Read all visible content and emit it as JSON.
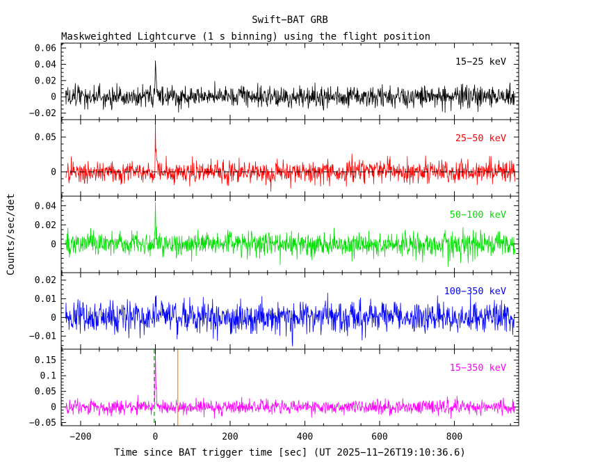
{
  "title": "Swift−BAT GRB",
  "subtitle": "Maskweighted Lightcurve (1 s binning) using the flight position",
  "xlabel": "Time since BAT trigger time [sec] (UT 2025−11−26T19:10:36.6)",
  "ylabel": "Counts/sec/det",
  "chart_data": {
    "type": "line",
    "title": "Swift−BAT GRB",
    "subtitle": "Maskweighted Lightcurve (1 s binning) using the flight position",
    "xlabel": "Time since BAT trigger time [sec] (UT 2025−11−26T19:10:36.6)",
    "ylabel": "Counts/sec/det",
    "legend_position": "none",
    "grid": false,
    "x_axis": {
      "min": -252,
      "max": 972,
      "data_start": -240,
      "data_end": 962,
      "bin_sec": 1,
      "major_ticks": [
        -200,
        0,
        200,
        400,
        600,
        800
      ],
      "tick_labels": [
        "−200",
        "0",
        "200",
        "400",
        "600",
        "800"
      ],
      "minor_step": 50
    },
    "noise_seed": 20251126,
    "panels": [
      {
        "name": "15-25-keV",
        "label": "15−25 keV",
        "color": "#000000",
        "ylim": [
          -0.028,
          0.066
        ],
        "ytick_values": [
          0.06,
          0.04,
          0.02,
          0,
          -0.02
        ],
        "ytick_labels": [
          "0.06",
          "0.04",
          "0.02",
          "0",
          "−0.02"
        ],
        "minor_step": 0.005,
        "noise_sigma": 0.0063,
        "peak": {
          "t0": 0,
          "amp": 0.053,
          "rise": 0.9,
          "decay": 2.2
        }
      },
      {
        "name": "25-50-keV",
        "label": "25−50 keV",
        "color": "#ff0000",
        "ylim": [
          -0.035,
          0.075
        ],
        "ytick_values": [
          0.05,
          0
        ],
        "ytick_labels": [
          "0.05",
          "0"
        ],
        "minor_step": 0.01,
        "noise_sigma": 0.0078,
        "peak": {
          "t0": 0,
          "amp": 0.062,
          "rise": 0.9,
          "decay": 3.5
        }
      },
      {
        "name": "50-100-keV",
        "label": "50−100 keV",
        "color": "#00dd00",
        "ylim": [
          -0.03,
          0.05
        ],
        "ytick_values": [
          0.04,
          0.02,
          0
        ],
        "ytick_labels": [
          "0.04",
          "0.02",
          "0"
        ],
        "minor_step": 0.005,
        "noise_sigma": 0.0063,
        "peak": {
          "t0": 0,
          "amp": 0.043,
          "rise": 0.8,
          "decay": 1.8
        }
      },
      {
        "name": "100-350-keV",
        "label": "100−350 keV",
        "color": "#0000ff",
        "ylim": [
          -0.017,
          0.024
        ],
        "ytick_values": [
          0.02,
          0.01,
          0,
          -0.01
        ],
        "ytick_labels": [
          "0.02",
          "0.01",
          "0",
          "−0.01"
        ],
        "minor_step": 0.0025,
        "noise_sigma": 0.0042,
        "peak": {
          "t0": 0,
          "amp": 0.014,
          "rise": 0.8,
          "decay": 1.5
        }
      },
      {
        "name": "15-350-keV",
        "label": "15−350 keV",
        "color": "#ff00ff",
        "ylim": [
          -0.06,
          0.185
        ],
        "ytick_values": [
          0.15,
          0.1,
          0.05,
          0,
          -0.05
        ],
        "ytick_labels": [
          "0.15",
          "0.1",
          "0.05",
          "0",
          "−0.05"
        ],
        "minor_step": 0.01,
        "noise_sigma": 0.0115,
        "peak": {
          "t0": 0,
          "amp": 0.165,
          "rise": 0.9,
          "decay": 2.2
        }
      }
    ],
    "annotations": [
      {
        "name": "zero-level-line",
        "panel_index": 1,
        "y": 0,
        "color": "#000000",
        "dash": "8,5",
        "width": 1
      },
      {
        "name": "trigger-interval-line",
        "panel_index": 4,
        "x": -3,
        "color": "#00bb00",
        "dash": "6,4",
        "width": 1.3
      },
      {
        "name": "slew-time-line",
        "panel_index": 4,
        "x": 60,
        "color": "#ff9000",
        "dash": "",
        "width": 1.3
      }
    ]
  }
}
